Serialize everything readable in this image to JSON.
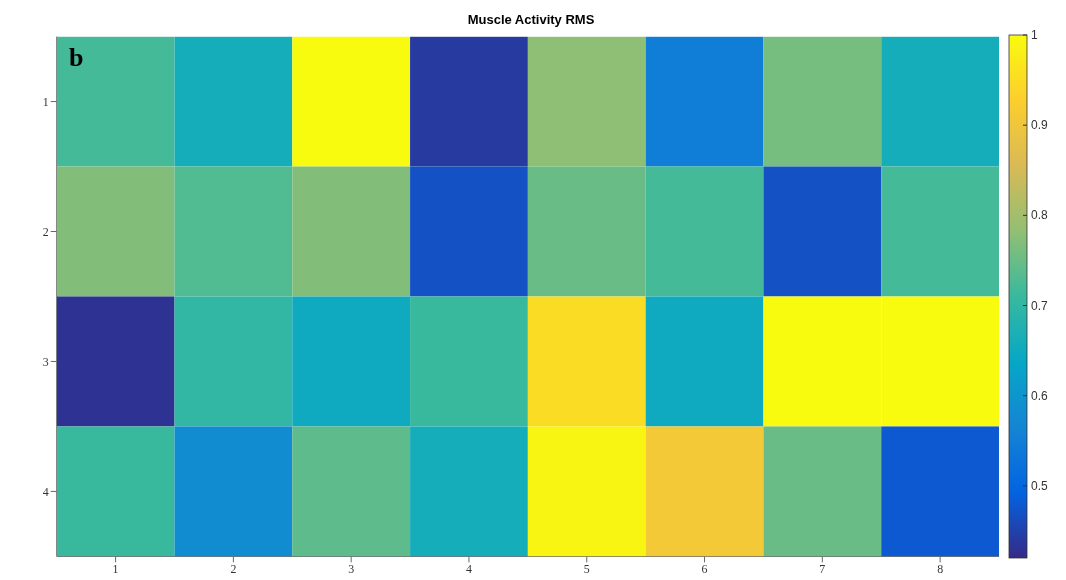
{
  "chart_data": {
    "type": "heatmap",
    "title": "Muscle Activity RMS",
    "annotations": [
      "b"
    ],
    "categories": [
      "1",
      "2",
      "3",
      "4",
      "5",
      "6",
      "7",
      "8"
    ],
    "y_categories": [
      "1",
      "2",
      "3",
      "4"
    ],
    "cells": [
      [
        0.72,
        0.66,
        1.0,
        0.44,
        0.78,
        0.55,
        0.76,
        0.66
      ],
      [
        0.77,
        0.73,
        0.77,
        0.47,
        0.75,
        0.72,
        0.47,
        0.72
      ],
      [
        0.43,
        0.7,
        0.65,
        0.71,
        0.95,
        0.65,
        1.0,
        1.0
      ],
      [
        0.71,
        0.58,
        0.74,
        0.66,
        0.99,
        0.91,
        0.75,
        0.48
      ]
    ],
    "clim": [
      0.42,
      1
    ],
    "cticks": [
      0.5,
      0.6,
      0.7,
      0.8,
      0.9,
      1
    ]
  }
}
